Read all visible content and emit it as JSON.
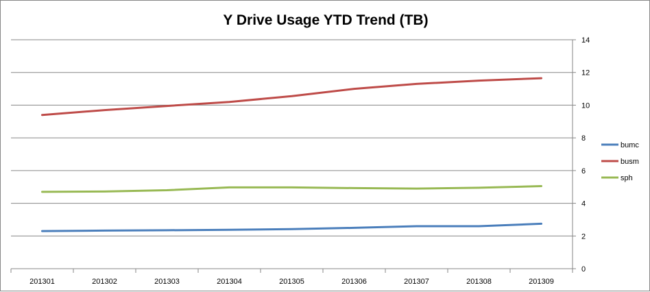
{
  "chart_data": {
    "type": "line",
    "title": "Y Drive Usage YTD Trend (TB)",
    "xlabel": "",
    "ylabel": "",
    "categories": [
      "201301",
      "201302",
      "201303",
      "201304",
      "201305",
      "201306",
      "201307",
      "201308",
      "201309"
    ],
    "ylim": [
      0,
      14
    ],
    "yticks": [
      0,
      2,
      4,
      6,
      8,
      10,
      12,
      14
    ],
    "y_axis_side": "right",
    "grid": true,
    "legend_position": "right",
    "series": [
      {
        "name": "bumc",
        "color": "#4a7ebb",
        "values": [
          2.3,
          2.33,
          2.35,
          2.38,
          2.42,
          2.5,
          2.6,
          2.6,
          2.75
        ]
      },
      {
        "name": "busm",
        "color": "#be4b48",
        "values": [
          9.4,
          9.7,
          9.95,
          10.2,
          10.55,
          11.0,
          11.3,
          11.5,
          11.65
        ]
      },
      {
        "name": "sph",
        "color": "#98b954",
        "values": [
          4.7,
          4.72,
          4.8,
          4.97,
          4.97,
          4.93,
          4.9,
          4.95,
          5.05
        ]
      }
    ]
  }
}
